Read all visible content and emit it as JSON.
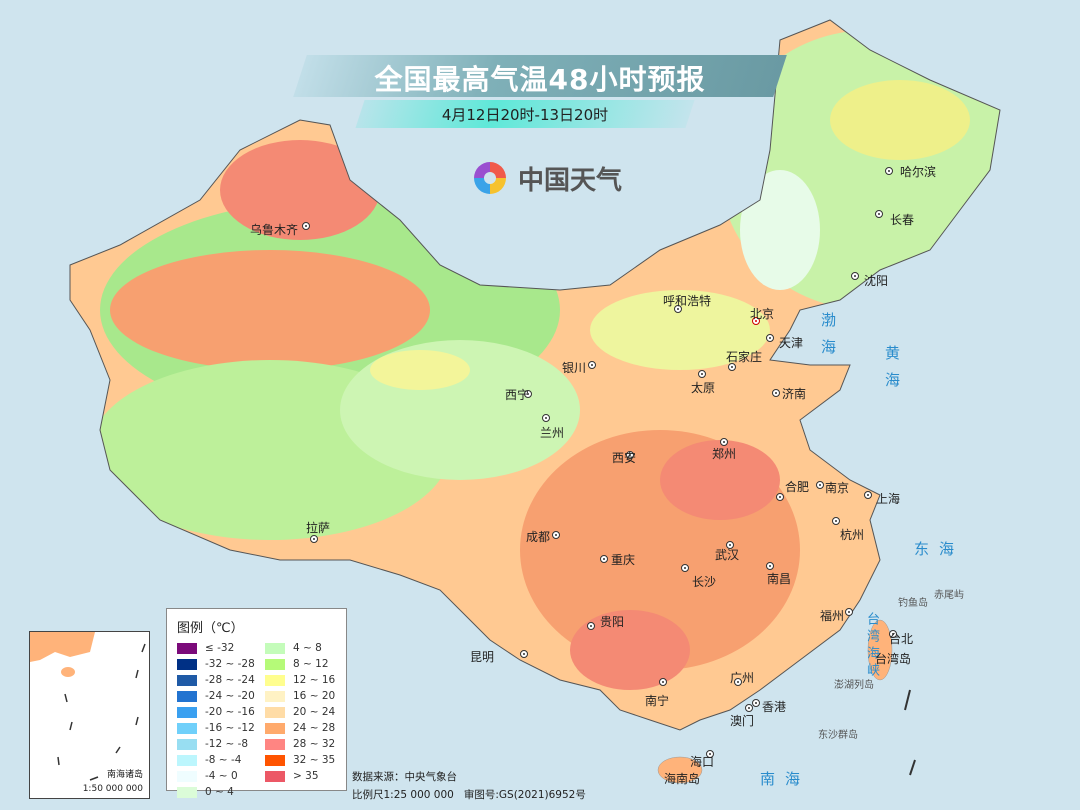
{
  "header": {
    "title": "全国最高气温48小时预报",
    "subtitle": "4月12日20时-13日20时"
  },
  "logo": {
    "text": "中国天气",
    "icon": "pinwheel-logo-icon"
  },
  "cities": [
    {
      "name": "乌鲁木齐"
    },
    {
      "name": "哈尔滨"
    },
    {
      "name": "长春"
    },
    {
      "name": "沈阳"
    },
    {
      "name": "呼和浩特"
    },
    {
      "name": "北京"
    },
    {
      "name": "天津"
    },
    {
      "name": "石家庄"
    },
    {
      "name": "太原"
    },
    {
      "name": "济南"
    },
    {
      "name": "银川"
    },
    {
      "name": "西宁"
    },
    {
      "name": "兰州"
    },
    {
      "name": "西安"
    },
    {
      "name": "郑州"
    },
    {
      "name": "合肥"
    },
    {
      "name": "南京"
    },
    {
      "name": "上海"
    },
    {
      "name": "成都"
    },
    {
      "name": "重庆"
    },
    {
      "name": "武汉"
    },
    {
      "name": "杭州"
    },
    {
      "name": "拉萨"
    },
    {
      "name": "长沙"
    },
    {
      "name": "南昌"
    },
    {
      "name": "贵阳"
    },
    {
      "name": "福州"
    },
    {
      "name": "台北"
    },
    {
      "name": "昆明"
    },
    {
      "name": "广州"
    },
    {
      "name": "南宁"
    },
    {
      "name": "香港"
    },
    {
      "name": "澳门"
    },
    {
      "name": "海口"
    }
  ],
  "seas": {
    "bohai": "渤海",
    "huanghai": "黄海",
    "donghai": "东海",
    "taiwan_strait": "台湾海峡",
    "nanhai": "南海"
  },
  "islands": {
    "taiwan": "台湾岛",
    "diaoyu": "钓鱼岛",
    "chiwei": "赤尾屿",
    "penghu": "澎湖列岛",
    "dongsha": "东沙群岛",
    "hainan": "海南岛"
  },
  "legend": {
    "title": "图例（℃）",
    "items": [
      {
        "label": "≤ -32",
        "color": "#7b0a7a"
      },
      {
        "label": "-32 ~ -28",
        "color": "#003085"
      },
      {
        "label": "-28 ~ -24",
        "color": "#1f5aa6"
      },
      {
        "label": "-24 ~ -20",
        "color": "#2273d0"
      },
      {
        "label": "-20 ~ -16",
        "color": "#3aa0f0"
      },
      {
        "label": "-16 ~ -12",
        "color": "#70d0fa"
      },
      {
        "label": "-12 ~ -8",
        "color": "#98def2"
      },
      {
        "label": "-8 ~ -4",
        "color": "#bcf6fd"
      },
      {
        "label": "-4 ~ 0",
        "color": "#effdff"
      },
      {
        "label": "0 ~ 4",
        "color": "#dbfcd8"
      },
      {
        "label": "4 ~ 8",
        "color": "#c4fcba"
      },
      {
        "label": "8 ~ 12",
        "color": "#b5fa78"
      },
      {
        "label": "12 ~ 16",
        "color": "#fffe8e"
      },
      {
        "label": "16 ~ 20",
        "color": "#fff2c4"
      },
      {
        "label": "20 ~ 24",
        "color": "#ffdca6"
      },
      {
        "label": "24 ~ 28",
        "color": "#ffaa6c"
      },
      {
        "label": "28 ~ 32",
        "color": "#ff8582"
      },
      {
        "label": "32 ~ 35",
        "color": "#ff5400"
      },
      {
        "label": "> 35",
        "color": "#ec5866"
      }
    ]
  },
  "inset": {
    "name": "南海诸岛",
    "scale": "1:50 000 000"
  },
  "footer": {
    "source": "数据来源：中央气象台",
    "scale": "比例尺1:25 000 000",
    "approval": "审图号:GS(2021)6952号"
  }
}
